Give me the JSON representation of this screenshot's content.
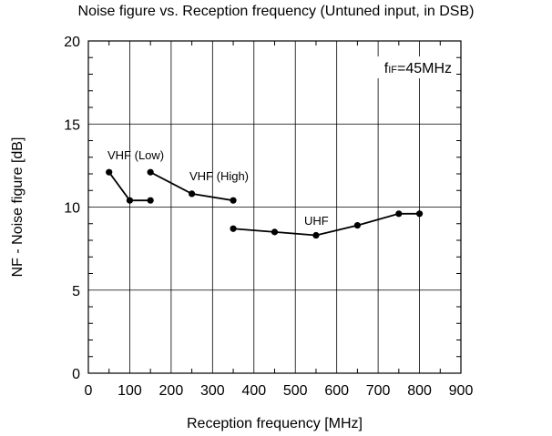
{
  "chart_data": {
    "type": "line",
    "title": "Noise figure vs. Reception frequency (Untuned input, in DSB)",
    "xlabel": "Reception frequency [MHz]",
    "ylabel": "NF - Noise figure [dB]",
    "xlim": [
      0,
      900
    ],
    "ylim": [
      0,
      20
    ],
    "x_ticks": [
      0,
      100,
      200,
      300,
      400,
      500,
      600,
      700,
      800,
      900
    ],
    "y_ticks": [
      0,
      5,
      10,
      15,
      20
    ],
    "grid": true,
    "annotation": {
      "prefix": "f",
      "subscript": "IF",
      "suffix": "=45MHz"
    },
    "series": [
      {
        "name": "VHF (Low)",
        "x": [
          50,
          100,
          150
        ],
        "y": [
          12.1,
          10.4,
          10.4
        ]
      },
      {
        "name": "VHF (High)",
        "x": [
          150,
          250,
          350
        ],
        "y": [
          12.1,
          10.8,
          10.4
        ]
      },
      {
        "name": "UHF",
        "x": [
          350,
          450,
          550,
          650,
          750,
          800
        ],
        "y": [
          8.7,
          8.5,
          8.3,
          8.9,
          9.6,
          9.6
        ]
      }
    ]
  }
}
